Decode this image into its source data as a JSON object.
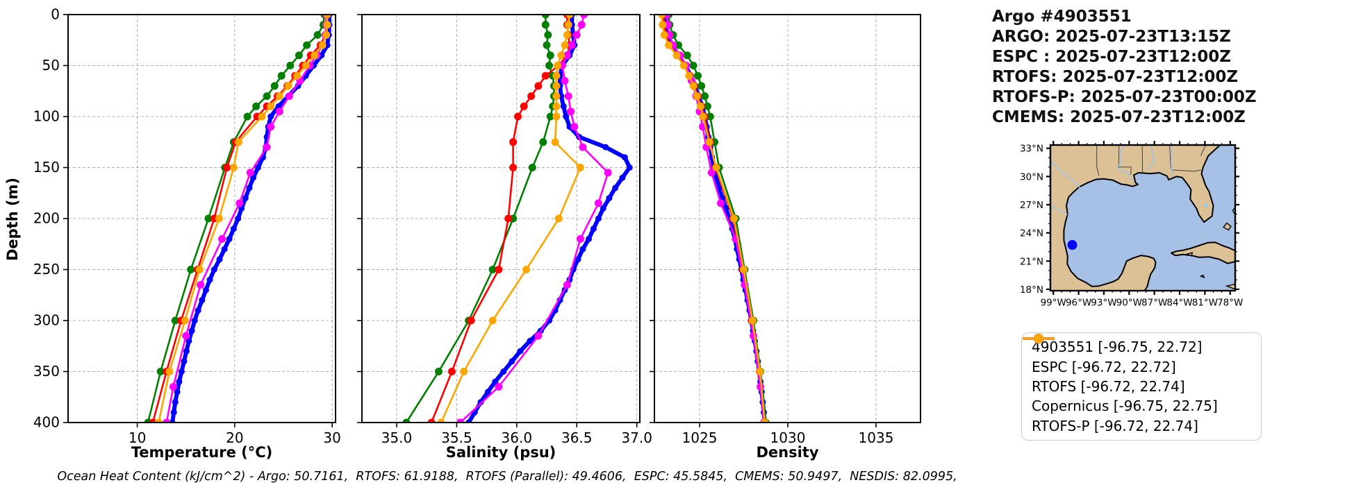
{
  "title_block": {
    "lines": [
      "Argo #4903551",
      "ARGO: 2025-07-23T13:15Z",
      "ESPC : 2025-07-23T12:00Z",
      "RTOFS: 2025-07-23T12:00Z",
      "RTOFS-P: 2025-07-23T00:00Z",
      "CMEMS: 2025-07-23T12:00Z"
    ]
  },
  "ylabel": "Depth (m)",
  "footer": "Ocean Heat Content (kJ/cm^2) - Argo: 50.7161,  RTOFS: 61.9188,  RTOFS (Parallel): 49.4606,  ESPC: 45.5845,  CMEMS: 50.9497,  NESDIS: 82.0995,",
  "colors": {
    "argo": "#0000ff",
    "espc": "#008000",
    "rtofs": "#ff0000",
    "copernicus": "#ff00ff",
    "rtofs_p": "#ffa500",
    "grid": "#b0b0b0",
    "land": "#dcc096",
    "water": "#a7c1e6",
    "coast": "#000000"
  },
  "legend": {
    "entries": [
      {
        "label": "4903551 [-96.75, 22.72]",
        "color": "#0000ff"
      },
      {
        "label": "ESPC [-96.72, 22.72]",
        "color": "#008000"
      },
      {
        "label": "RTOFS [-96.72, 22.74]",
        "color": "#ff0000"
      },
      {
        "label": "Copernicus [-96.75, 22.75]",
        "color": "#ff00ff"
      },
      {
        "label": "RTOFS-P [-96.72, 22.74]",
        "color": "#ffa500"
      }
    ]
  },
  "map": {
    "lat_tick_labels": [
      "33°N",
      "30°N",
      "27°N",
      "24°N",
      "21°N",
      "18°N"
    ],
    "lat_tick_values": [
      33,
      30,
      27,
      24,
      21,
      18
    ],
    "lon_tick_labels": [
      "99°W",
      "96°W",
      "93°W",
      "90°W",
      "87°W",
      "84°W",
      "81°W",
      "78°W"
    ],
    "lon_tick_values": [
      -99,
      -96,
      -93,
      -90,
      -87,
      -84,
      -81,
      -78
    ],
    "bounds": {
      "lon_min": -99.35,
      "lon_max": -77.4,
      "lat_min": 17.85,
      "lat_max": 33.35
    },
    "marker": {
      "lon": -96.75,
      "lat": 22.72,
      "color": "#0000ff"
    }
  },
  "chart_data": [
    {
      "type": "line",
      "xlabel": "Temperature (°C)",
      "xlim": [
        2.9,
        30.35
      ],
      "xticks": [
        10,
        20,
        30
      ],
      "xtick_labels": [
        "10",
        "20",
        "30"
      ],
      "ylabel": "Depth (m)",
      "ylim": [
        400,
        0
      ],
      "yticks": [
        0,
        50,
        100,
        150,
        200,
        250,
        300,
        350,
        400
      ],
      "ytick_labels": [
        "0",
        "50",
        "100",
        "150",
        "200",
        "250",
        "300",
        "350",
        "400"
      ],
      "grid": true,
      "legend_position": "none",
      "series": [
        {
          "name": "4903551",
          "color": "#0000ff",
          "line_width": 6,
          "marker_radius": 4.5,
          "depth": [
            0,
            10,
            20,
            30,
            40,
            50,
            60,
            70,
            80,
            90,
            100,
            110,
            120,
            130,
            140,
            150,
            160,
            170,
            180,
            190,
            200,
            210,
            220,
            230,
            240,
            250,
            260,
            270,
            280,
            290,
            300,
            310,
            320,
            330,
            340,
            350,
            360,
            370,
            380,
            390,
            400
          ],
          "values": [
            29.7,
            29.7,
            29.65,
            29.5,
            28.9,
            28.1,
            27.3,
            26.5,
            25.5,
            24.5,
            23.7,
            23.45,
            23.3,
            23.2,
            22.9,
            22.4,
            21.9,
            21.5,
            21.1,
            20.7,
            20.35,
            19.9,
            19.45,
            18.95,
            18.45,
            17.9,
            17.45,
            17.05,
            16.65,
            16.25,
            15.9,
            15.6,
            15.3,
            15.05,
            14.8,
            14.55,
            14.3,
            14.1,
            13.9,
            13.75,
            13.6
          ]
        },
        {
          "name": "ESPC",
          "color": "#008000",
          "line_width": 2.6,
          "marker_radius": 5.5,
          "depth": [
            0,
            10,
            20,
            30,
            40,
            50,
            60,
            70,
            80,
            90,
            100,
            125,
            150,
            200,
            250,
            300,
            350,
            400
          ],
          "values": [
            29.2,
            29.1,
            28.5,
            27.4,
            26.6,
            25.7,
            24.8,
            24.1,
            23.3,
            22.2,
            21.3,
            19.9,
            19.0,
            17.3,
            15.5,
            13.9,
            12.4,
            11.1
          ]
        },
        {
          "name": "RTOFS",
          "color": "#ff0000",
          "line_width": 2.6,
          "marker_radius": 5.5,
          "depth": [
            0,
            10,
            20,
            30,
            40,
            50,
            60,
            70,
            80,
            90,
            100,
            125,
            150,
            200,
            250,
            300,
            350,
            400
          ],
          "values": [
            29.4,
            29.4,
            29.3,
            28.8,
            27.8,
            27.0,
            26.2,
            25.4,
            24.4,
            23.3,
            22.3,
            20.1,
            19.2,
            17.9,
            16.2,
            14.5,
            13.0,
            11.6
          ]
        },
        {
          "name": "Copernicus",
          "color": "#ff00ff",
          "line_width": 2.6,
          "marker_radius": 5.5,
          "depth": [
            0,
            10,
            20,
            30,
            40,
            50,
            65,
            80,
            95,
            110,
            130,
            155,
            185,
            220,
            265,
            315,
            365,
            400
          ],
          "values": [
            29.4,
            29.4,
            29.3,
            29.0,
            28.4,
            27.7,
            26.7,
            25.6,
            24.6,
            23.7,
            23.3,
            21.6,
            20.5,
            18.7,
            16.5,
            15.0,
            13.7,
            13.0
          ]
        },
        {
          "name": "RTOFS-P",
          "color": "#ffa500",
          "line_width": 2.6,
          "marker_radius": 5.5,
          "depth": [
            0,
            10,
            20,
            30,
            40,
            50,
            60,
            70,
            80,
            90,
            100,
            125,
            150,
            200,
            250,
            300,
            350,
            400
          ],
          "values": [
            29.5,
            29.5,
            29.4,
            29.0,
            28.2,
            27.3,
            26.4,
            25.5,
            24.6,
            23.7,
            22.8,
            20.4,
            19.9,
            18.4,
            16.4,
            14.9,
            13.3,
            12.2
          ]
        }
      ]
    },
    {
      "type": "line",
      "xlabel": "Salinity (psu)",
      "xlim": [
        34.711,
        37.025
      ],
      "xticks": [
        35.0,
        35.5,
        36.0,
        36.5,
        37.0
      ],
      "xtick_labels": [
        "35.0",
        "35.5",
        "36.0",
        "36.5",
        "37.0"
      ],
      "ylabel": "Depth (m)",
      "ylim": [
        400,
        0
      ],
      "yticks": [
        0,
        50,
        100,
        150,
        200,
        250,
        300,
        350,
        400
      ],
      "grid": true,
      "legend_position": "none",
      "series": [
        {
          "name": "4903551",
          "color": "#0000ff",
          "line_width": 6,
          "marker_radius": 4.5,
          "depth": [
            0,
            10,
            20,
            30,
            40,
            50,
            60,
            70,
            80,
            90,
            100,
            110,
            120,
            130,
            140,
            150,
            160,
            170,
            180,
            190,
            200,
            210,
            220,
            230,
            240,
            250,
            260,
            270,
            280,
            290,
            300,
            310,
            320,
            330,
            340,
            350,
            360,
            370,
            380,
            390,
            400
          ],
          "values": [
            36.46,
            36.46,
            36.47,
            36.48,
            36.44,
            36.38,
            36.36,
            36.36,
            36.37,
            36.39,
            36.41,
            36.44,
            36.52,
            36.74,
            36.9,
            36.94,
            36.88,
            36.82,
            36.77,
            36.72,
            36.68,
            36.64,
            36.6,
            36.55,
            36.51,
            36.47,
            36.44,
            36.4,
            36.36,
            36.32,
            36.27,
            36.2,
            36.11,
            36.03,
            35.96,
            35.89,
            35.82,
            35.76,
            35.7,
            35.65,
            35.6
          ]
        },
        {
          "name": "ESPC",
          "color": "#008000",
          "line_width": 2.6,
          "marker_radius": 5.5,
          "depth": [
            0,
            10,
            20,
            30,
            40,
            50,
            60,
            70,
            80,
            90,
            100,
            125,
            150,
            200,
            250,
            300,
            350,
            400
          ],
          "values": [
            36.24,
            36.24,
            36.26,
            36.25,
            36.28,
            36.27,
            36.3,
            36.31,
            36.31,
            36.3,
            36.28,
            36.22,
            36.13,
            35.97,
            35.8,
            35.6,
            35.35,
            35.08
          ]
        },
        {
          "name": "RTOFS",
          "color": "#ff0000",
          "line_width": 2.6,
          "marker_radius": 5.5,
          "depth": [
            0,
            10,
            20,
            30,
            40,
            50,
            60,
            70,
            80,
            90,
            100,
            125,
            150,
            200,
            250,
            300,
            350,
            400
          ],
          "values": [
            36.42,
            36.42,
            36.43,
            36.44,
            36.42,
            36.35,
            36.24,
            36.18,
            36.12,
            36.06,
            36.01,
            35.97,
            35.97,
            35.93,
            35.85,
            35.62,
            35.46,
            35.29
          ]
        },
        {
          "name": "Copernicus",
          "color": "#ff00ff",
          "line_width": 2.6,
          "marker_radius": 5.5,
          "depth": [
            0,
            10,
            20,
            30,
            40,
            50,
            65,
            80,
            95,
            110,
            130,
            155,
            185,
            220,
            265,
            315,
            365,
            400
          ],
          "values": [
            36.56,
            36.54,
            36.5,
            36.46,
            36.42,
            36.38,
            36.4,
            36.43,
            36.45,
            36.48,
            36.55,
            36.76,
            36.68,
            36.53,
            36.42,
            36.18,
            35.85,
            35.53
          ]
        },
        {
          "name": "RTOFS-P",
          "color": "#ffa500",
          "line_width": 2.6,
          "marker_radius": 5.5,
          "depth": [
            0,
            10,
            20,
            30,
            40,
            50,
            60,
            70,
            80,
            90,
            100,
            125,
            150,
            200,
            250,
            300,
            350,
            400
          ],
          "values": [
            36.44,
            36.43,
            36.42,
            36.4,
            36.37,
            36.34,
            36.33,
            36.33,
            36.33,
            36.33,
            36.33,
            36.32,
            36.53,
            36.35,
            36.08,
            35.8,
            35.56,
            35.37
          ]
        }
      ]
    },
    {
      "type": "line",
      "xlabel": "Density",
      "xlim": [
        1022.44,
        1037.52
      ],
      "xticks": [
        1025,
        1030,
        1035
      ],
      "xtick_labels": [
        "1025",
        "1030",
        "1035"
      ],
      "ylabel": "Depth (m)",
      "ylim": [
        400,
        0
      ],
      "yticks": [
        0,
        50,
        100,
        150,
        200,
        250,
        300,
        350,
        400
      ],
      "grid": true,
      "legend_position": "none",
      "series": [
        {
          "name": "4903551",
          "color": "#0000ff",
          "line_width": 6,
          "marker_radius": 4.5,
          "depth": [
            0,
            10,
            20,
            30,
            40,
            50,
            60,
            70,
            80,
            90,
            100,
            110,
            120,
            130,
            140,
            150,
            160,
            170,
            180,
            190,
            200,
            210,
            220,
            230,
            240,
            250,
            260,
            270,
            280,
            290,
            300,
            310,
            320,
            330,
            340,
            350,
            360,
            370,
            380,
            390,
            400
          ],
          "values": [
            1023.05,
            1023.1,
            1023.15,
            1023.35,
            1023.8,
            1024.2,
            1024.5,
            1024.75,
            1024.95,
            1025.15,
            1025.3,
            1025.4,
            1025.5,
            1025.6,
            1025.7,
            1025.8,
            1025.95,
            1026.1,
            1026.3,
            1026.5,
            1026.68,
            1026.85,
            1027.0,
            1027.12,
            1027.25,
            1027.37,
            1027.48,
            1027.6,
            1027.72,
            1027.83,
            1027.93,
            1028.03,
            1028.13,
            1028.22,
            1028.3,
            1028.38,
            1028.45,
            1028.52,
            1028.58,
            1028.64,
            1028.7
          ]
        },
        {
          "name": "ESPC",
          "color": "#008000",
          "line_width": 2.6,
          "marker_radius": 5.5,
          "depth": [
            0,
            10,
            20,
            30,
            40,
            50,
            60,
            70,
            80,
            90,
            100,
            125,
            150,
            200,
            250,
            300,
            350,
            400
          ],
          "values": [
            1023.25,
            1023.3,
            1023.5,
            1023.8,
            1024.3,
            1024.65,
            1024.9,
            1025.1,
            1025.3,
            1025.45,
            1025.6,
            1025.85,
            1026.1,
            1027.05,
            1027.55,
            1028.05,
            1028.45,
            1028.75
          ]
        },
        {
          "name": "RTOFS",
          "color": "#ff0000",
          "line_width": 2.6,
          "marker_radius": 5.5,
          "depth": [
            0,
            10,
            20,
            30,
            40,
            50,
            60,
            70,
            80,
            90,
            100,
            125,
            150,
            200,
            250,
            300,
            350,
            400
          ],
          "values": [
            1022.95,
            1023.0,
            1023.1,
            1023.3,
            1023.75,
            1024.15,
            1024.45,
            1024.7,
            1024.9,
            1025.1,
            1025.28,
            1025.6,
            1025.9,
            1026.9,
            1027.45,
            1027.95,
            1028.4,
            1028.68
          ]
        },
        {
          "name": "Copernicus",
          "color": "#ff00ff",
          "line_width": 2.6,
          "marker_radius": 5.5,
          "depth": [
            0,
            10,
            20,
            30,
            40,
            50,
            65,
            80,
            95,
            110,
            130,
            155,
            185,
            220,
            265,
            315,
            365,
            400
          ],
          "values": [
            1023.15,
            1023.2,
            1023.3,
            1023.5,
            1023.9,
            1024.25,
            1024.55,
            1024.8,
            1025.0,
            1025.18,
            1025.38,
            1025.68,
            1026.2,
            1027.05,
            1027.55,
            1028.05,
            1028.45,
            1028.65
          ]
        },
        {
          "name": "RTOFS-P",
          "color": "#ffa500",
          "line_width": 2.6,
          "marker_radius": 5.5,
          "depth": [
            0,
            10,
            20,
            30,
            40,
            50,
            60,
            70,
            80,
            90,
            100,
            125,
            150,
            200,
            250,
            300,
            350,
            400
          ],
          "values": [
            1022.85,
            1022.9,
            1023.0,
            1023.25,
            1023.7,
            1024.1,
            1024.4,
            1024.65,
            1024.85,
            1025.05,
            1025.2,
            1025.55,
            1025.95,
            1026.95,
            1027.5,
            1028.0,
            1028.42,
            1028.7
          ]
        }
      ]
    }
  ]
}
